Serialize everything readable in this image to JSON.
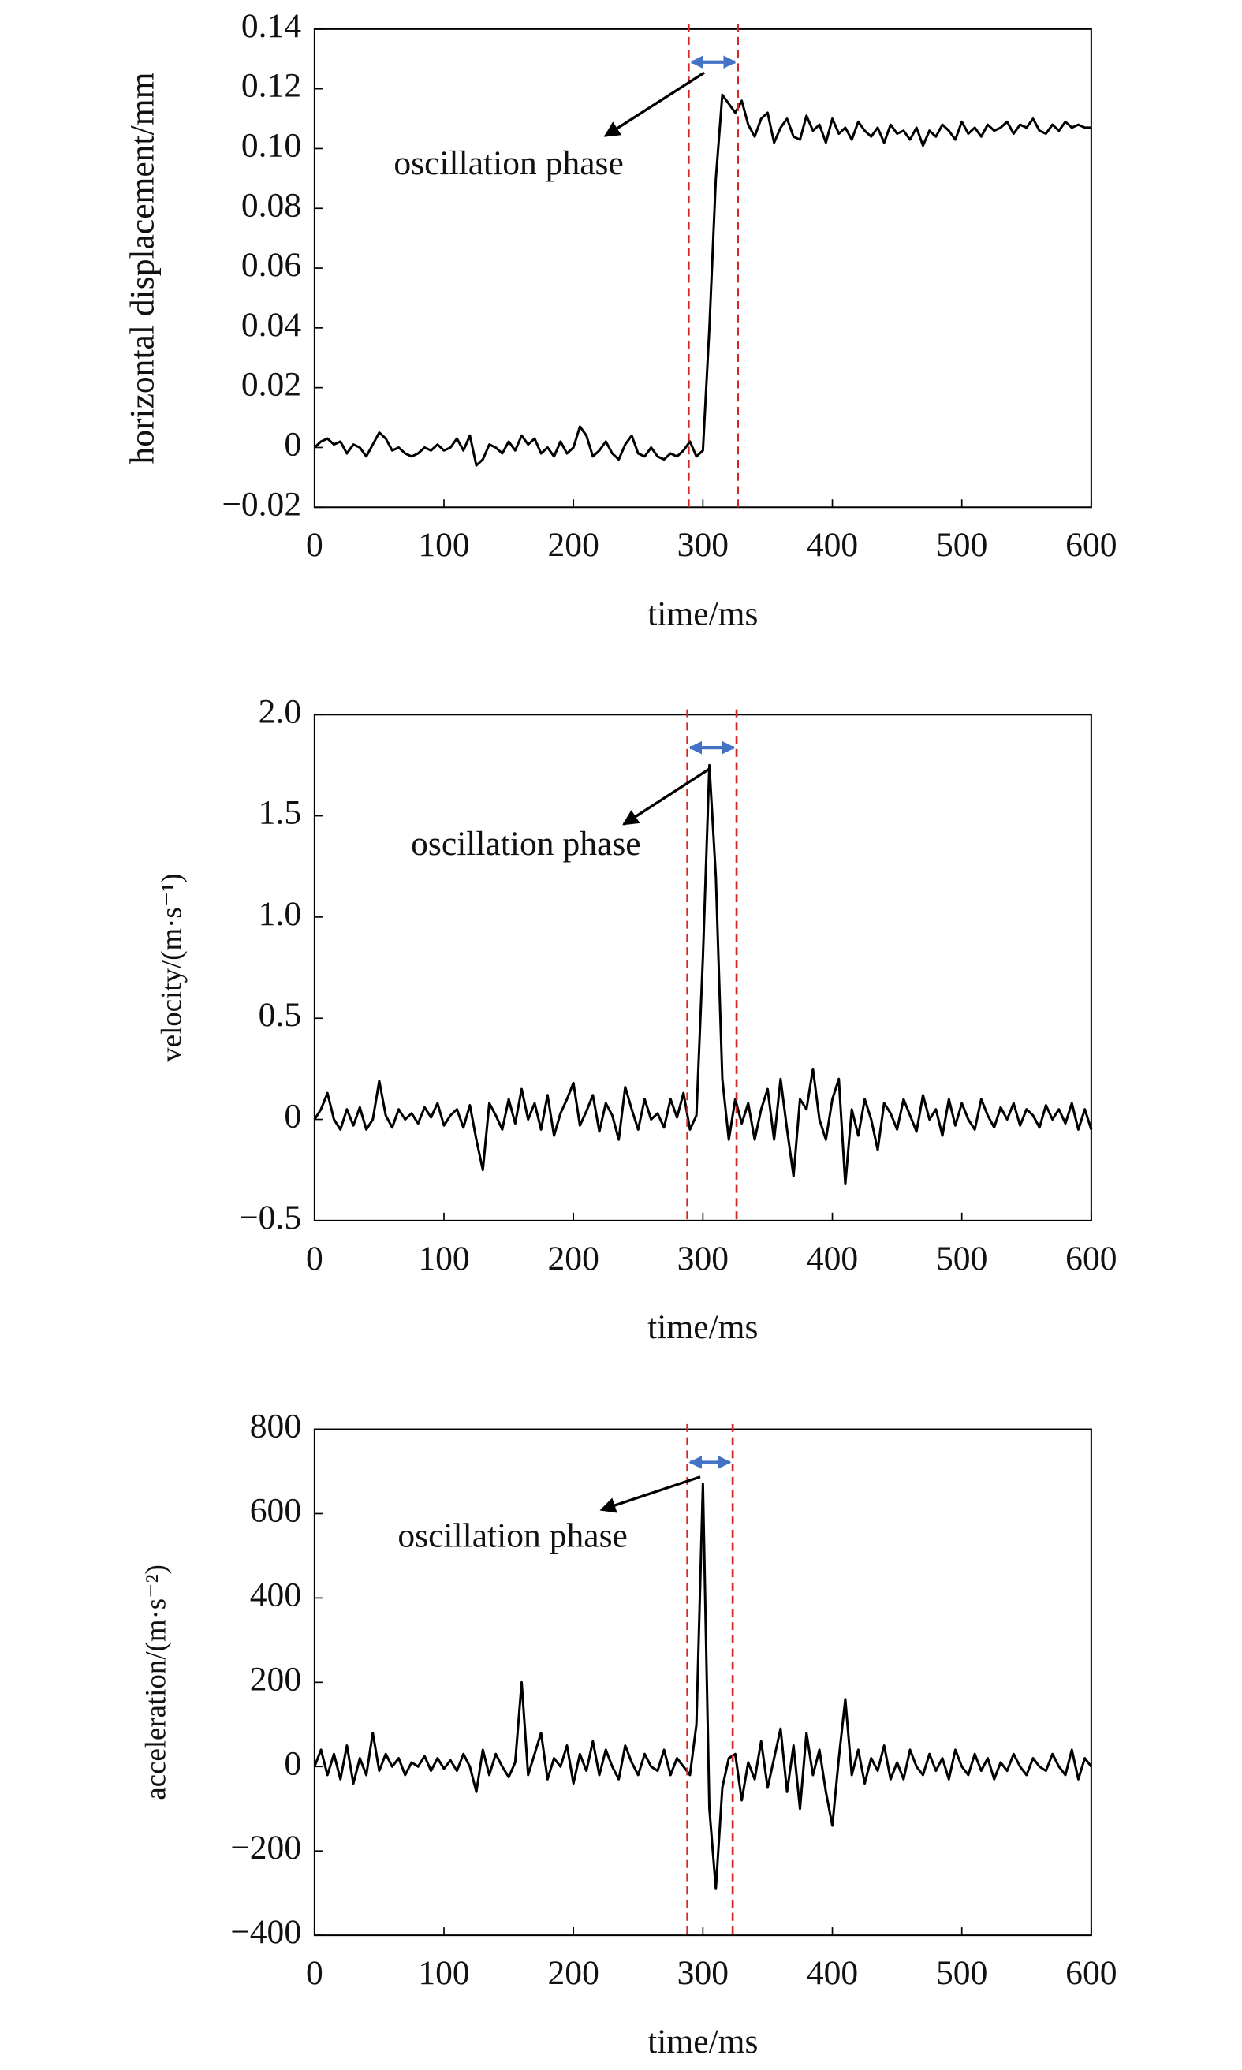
{
  "chart_data": [
    {
      "type": "line",
      "ylabel": "horizontal displacement/mm",
      "xlabel": "time/ms",
      "annotation": "oscillation phase",
      "phase_lines": [
        289,
        327
      ],
      "color": "#000000",
      "phase_color": "#d62728",
      "arrow_color": "#4472c4",
      "xlim": [
        0,
        600
      ],
      "xticks": [
        0,
        100,
        200,
        300,
        400,
        500,
        600
      ],
      "ylim": [
        -0.02,
        0.14
      ],
      "yticks": [
        {
          "value": -0.02,
          "label": "−0.02"
        },
        0,
        0.02,
        0.04,
        0.06,
        0.08,
        {
          "value": 0.1,
          "label": "0.10"
        },
        0.12,
        0.14
      ],
      "x": [
        0,
        5,
        10,
        15,
        20,
        25,
        30,
        35,
        40,
        45,
        50,
        55,
        60,
        65,
        70,
        75,
        80,
        85,
        90,
        95,
        100,
        105,
        110,
        115,
        120,
        125,
        130,
        135,
        140,
        145,
        150,
        155,
        160,
        165,
        170,
        175,
        180,
        185,
        190,
        195,
        200,
        205,
        210,
        215,
        220,
        225,
        230,
        235,
        240,
        245,
        250,
        255,
        260,
        265,
        270,
        275,
        280,
        285,
        290,
        295,
        300,
        305,
        310,
        315,
        320,
        325,
        330,
        335,
        340,
        345,
        350,
        355,
        360,
        365,
        370,
        375,
        380,
        385,
        390,
        395,
        400,
        405,
        410,
        415,
        420,
        425,
        430,
        435,
        440,
        445,
        450,
        455,
        460,
        465,
        470,
        475,
        480,
        485,
        490,
        495,
        500,
        505,
        510,
        515,
        520,
        525,
        530,
        535,
        540,
        545,
        550,
        555,
        560,
        565,
        570,
        575,
        580,
        585,
        590,
        595,
        600
      ],
      "values": [
        0,
        0.002,
        0.003,
        0.001,
        0.002,
        -0.002,
        0.001,
        0,
        -0.003,
        0.001,
        0.005,
        0.003,
        -0.001,
        0,
        -0.002,
        -0.003,
        -0.002,
        0,
        -0.001,
        0.001,
        -0.001,
        0,
        0.003,
        -0.001,
        0.004,
        -0.006,
        -0.004,
        0.001,
        0,
        -0.002,
        0.002,
        -0.001,
        0.004,
        0.001,
        0.003,
        -0.002,
        0,
        -0.003,
        0.002,
        -0.002,
        0,
        0.007,
        0.004,
        -0.003,
        -0.001,
        0.002,
        -0.002,
        -0.004,
        0.001,
        0.004,
        -0.002,
        -0.003,
        0,
        -0.003,
        -0.004,
        -0.002,
        -0.003,
        -0.001,
        0.002,
        -0.003,
        -0.001,
        0.04,
        0.09,
        0.118,
        0.115,
        0.112,
        0.116,
        0.108,
        0.104,
        0.11,
        0.112,
        0.102,
        0.107,
        0.11,
        0.104,
        0.103,
        0.111,
        0.106,
        0.108,
        0.102,
        0.11,
        0.105,
        0.107,
        0.103,
        0.109,
        0.106,
        0.104,
        0.107,
        0.102,
        0.108,
        0.105,
        0.106,
        0.103,
        0.107,
        0.101,
        0.106,
        0.104,
        0.108,
        0.106,
        0.103,
        0.109,
        0.105,
        0.107,
        0.104,
        0.108,
        0.106,
        0.107,
        0.109,
        0.105,
        0.108,
        0.107,
        0.11,
        0.106,
        0.105,
        0.108,
        0.106,
        0.109,
        0.107,
        0.108,
        0.107,
        0.107
      ]
    },
    {
      "type": "line",
      "ylabel": "velocity/(m·s⁻¹)",
      "xlabel": "time/ms",
      "annotation": "oscillation phase",
      "phase_lines": [
        288,
        326
      ],
      "color": "#000000",
      "phase_color": "#d62728",
      "arrow_color": "#4472c4",
      "xlim": [
        0,
        600
      ],
      "xticks": [
        0,
        100,
        200,
        300,
        400,
        500,
        600
      ],
      "ylim": [
        -0.5,
        2.0
      ],
      "yticks": [
        {
          "value": -0.5,
          "label": "−0.5"
        },
        0,
        0.5,
        {
          "value": 1.0,
          "label": "1.0"
        },
        1.5,
        {
          "value": 2.0,
          "label": "2.0"
        }
      ],
      "x": [
        0,
        5,
        10,
        15,
        20,
        25,
        30,
        35,
        40,
        45,
        50,
        55,
        60,
        65,
        70,
        75,
        80,
        85,
        90,
        95,
        100,
        105,
        110,
        115,
        120,
        125,
        130,
        135,
        140,
        145,
        150,
        155,
        160,
        165,
        170,
        175,
        180,
        185,
        190,
        195,
        200,
        205,
        210,
        215,
        220,
        225,
        230,
        235,
        240,
        245,
        250,
        255,
        260,
        265,
        270,
        275,
        280,
        285,
        290,
        295,
        300,
        305,
        310,
        315,
        320,
        325,
        330,
        335,
        340,
        345,
        350,
        355,
        360,
        365,
        370,
        375,
        380,
        385,
        390,
        395,
        400,
        405,
        410,
        415,
        420,
        425,
        430,
        435,
        440,
        445,
        450,
        455,
        460,
        465,
        470,
        475,
        480,
        485,
        490,
        495,
        500,
        505,
        510,
        515,
        520,
        525,
        530,
        535,
        540,
        545,
        550,
        555,
        560,
        565,
        570,
        575,
        580,
        585,
        590,
        595,
        600
      ],
      "values": [
        0,
        0.05,
        0.13,
        0,
        -0.05,
        0.05,
        -0.03,
        0.06,
        -0.05,
        0,
        0.19,
        0.02,
        -0.04,
        0.05,
        0,
        0.03,
        -0.02,
        0.06,
        0.01,
        0.08,
        -0.03,
        0.02,
        0.05,
        -0.04,
        0.07,
        -0.1,
        -0.25,
        0.08,
        0.02,
        -0.05,
        0.1,
        -0.02,
        0.15,
        0,
        0.08,
        -0.05,
        0.12,
        -0.08,
        0.03,
        0.1,
        0.18,
        -0.03,
        0.04,
        0.12,
        -0.06,
        0.08,
        0.02,
        -0.1,
        0.16,
        0.05,
        -0.05,
        0.1,
        0,
        0.03,
        -0.04,
        0.1,
        0.01,
        0.13,
        -0.05,
        0.02,
        0.8,
        1.75,
        1.2,
        0.2,
        -0.1,
        0.1,
        -0.02,
        0.08,
        -0.1,
        0.05,
        0.15,
        -0.1,
        0.2,
        -0.05,
        -0.28,
        0.1,
        0.05,
        0.25,
        0,
        -0.1,
        0.1,
        0.2,
        -0.32,
        0.05,
        -0.08,
        0.1,
        0,
        -0.15,
        0.08,
        0.03,
        -0.05,
        0.1,
        0.02,
        -0.06,
        0.12,
        0,
        0.05,
        -0.08,
        0.1,
        -0.03,
        0.08,
        0,
        -0.05,
        0.1,
        0.02,
        -0.04,
        0.06,
        0,
        0.08,
        -0.03,
        0.05,
        0.02,
        -0.04,
        0.07,
        0,
        0.05,
        -0.02,
        0.08,
        -0.05,
        0.05,
        -0.05
      ]
    },
    {
      "type": "line",
      "ylabel": "acceleration/(m·s⁻²)",
      "xlabel": "time/ms",
      "annotation": "oscillation phase",
      "phase_lines": [
        288,
        323
      ],
      "color": "#000000",
      "phase_color": "#d62728",
      "arrow_color": "#4472c4",
      "xlim": [
        0,
        600
      ],
      "xticks": [
        0,
        100,
        200,
        300,
        400,
        500,
        600
      ],
      "ylim": [
        -400,
        800
      ],
      "yticks": [
        {
          "value": -400,
          "label": "−400"
        },
        {
          "value": -200,
          "label": "−200"
        },
        0,
        200,
        400,
        600,
        800
      ],
      "x": [
        0,
        5,
        10,
        15,
        20,
        25,
        30,
        35,
        40,
        45,
        50,
        55,
        60,
        65,
        70,
        75,
        80,
        85,
        90,
        95,
        100,
        105,
        110,
        115,
        120,
        125,
        130,
        135,
        140,
        145,
        150,
        155,
        160,
        165,
        170,
        175,
        180,
        185,
        190,
        195,
        200,
        205,
        210,
        215,
        220,
        225,
        230,
        235,
        240,
        245,
        250,
        255,
        260,
        265,
        270,
        275,
        280,
        285,
        290,
        295,
        300,
        305,
        310,
        315,
        320,
        325,
        330,
        335,
        340,
        345,
        350,
        355,
        360,
        365,
        370,
        375,
        380,
        385,
        390,
        395,
        400,
        405,
        410,
        415,
        420,
        425,
        430,
        435,
        440,
        445,
        450,
        455,
        460,
        465,
        470,
        475,
        480,
        485,
        490,
        495,
        500,
        505,
        510,
        515,
        520,
        525,
        530,
        535,
        540,
        545,
        550,
        555,
        560,
        565,
        570,
        575,
        580,
        585,
        590,
        595,
        600
      ],
      "values": [
        0,
        40,
        -20,
        30,
        -30,
        50,
        -40,
        20,
        -20,
        80,
        -10,
        30,
        0,
        20,
        -20,
        10,
        0,
        25,
        -10,
        20,
        -5,
        15,
        -10,
        30,
        0,
        -60,
        40,
        -20,
        30,
        0,
        -25,
        10,
        200,
        -20,
        30,
        80,
        -30,
        20,
        0,
        50,
        -40,
        30,
        -10,
        60,
        -20,
        40,
        0,
        -30,
        50,
        10,
        -20,
        30,
        0,
        -10,
        40,
        -20,
        20,
        0,
        -20,
        100,
        670,
        -100,
        -290,
        -50,
        20,
        30,
        -80,
        10,
        -30,
        60,
        -50,
        20,
        90,
        -60,
        50,
        -100,
        80,
        -20,
        40,
        -60,
        -140,
        20,
        160,
        -20,
        40,
        -40,
        20,
        -10,
        50,
        -30,
        10,
        -30,
        40,
        0,
        -20,
        30,
        -10,
        20,
        -30,
        40,
        0,
        -20,
        30,
        -10,
        20,
        -30,
        10,
        -10,
        30,
        0,
        -20,
        20,
        0,
        -10,
        30,
        0,
        -20,
        40,
        -30,
        20,
        0
      ]
    }
  ]
}
